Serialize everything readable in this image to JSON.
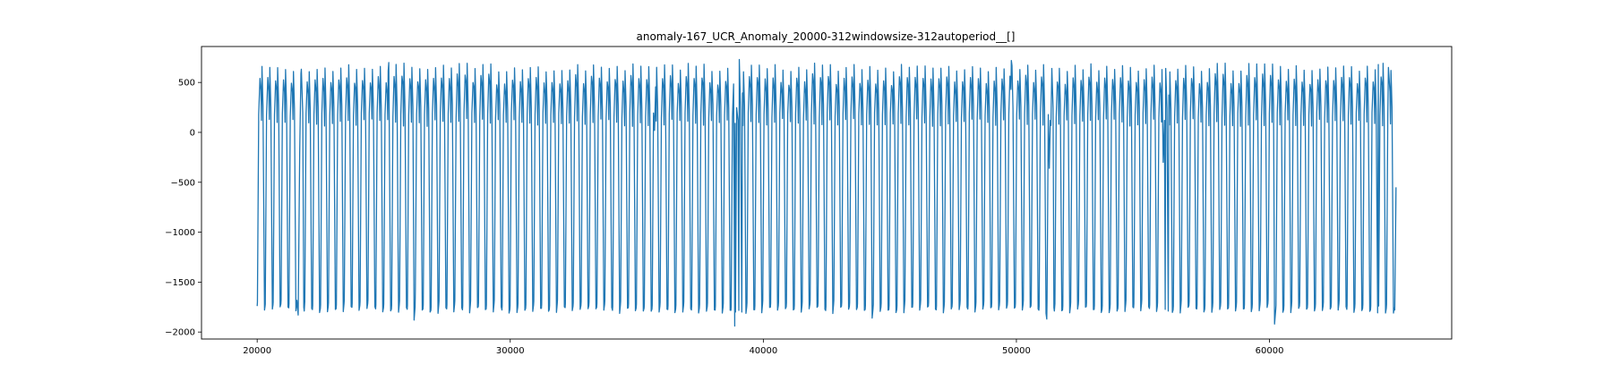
{
  "chart_data": {
    "type": "line",
    "title": "anomaly-167_UCR_Anomaly_20000-312windowsize-312autoperiod__[]",
    "xlabel": "",
    "ylabel": "",
    "xlim": [
      17800,
      67200
    ],
    "ylim": [
      -2070,
      860
    ],
    "xticks": [
      20000,
      30000,
      40000,
      50000,
      60000
    ],
    "yticks": [
      500,
      0,
      -500,
      -1000,
      -1500,
      -2000
    ],
    "xtick_labels": [
      "20000",
      "30000",
      "40000",
      "50000",
      "60000"
    ],
    "ytick_labels": [
      "500",
      "0",
      "−500",
      "−1000",
      "−1500",
      "−2000"
    ],
    "grid": false,
    "legend": "none",
    "series": [
      {
        "color": "#1f77b4",
        "x_start": 20000,
        "x_end": 65000,
        "period": 312,
        "typical_peak": 650,
        "typical_trough": -1780,
        "end_value": -550,
        "points": [
          [
            20000,
            -1740
          ],
          [
            20010,
            -1700
          ],
          [
            20060,
            180
          ],
          [
            20110,
            540
          ],
          [
            20150,
            420
          ],
          [
            20170,
            120
          ],
          [
            20190,
            660
          ],
          [
            20230,
            260
          ],
          [
            20290,
            -1780
          ],
          [
            20312,
            -1740
          ],
          [
            20320,
            -1720
          ],
          [
            20370,
            170
          ],
          [
            20420,
            550
          ],
          [
            20460,
            410
          ],
          [
            20480,
            130
          ],
          [
            20500,
            650
          ],
          [
            20540,
            250
          ],
          [
            20600,
            -1770
          ],
          [
            20624,
            -1730
          ],
          [
            20632,
            -1700
          ],
          [
            21600,
            -1860
          ],
          [
            21620,
            -1830
          ],
          [
            21680,
            -210
          ],
          [
            21700,
            120
          ],
          [
            21730,
            590
          ],
          [
            21800,
            200
          ],
          [
            21860,
            -1790
          ],
          [
            25200,
            700
          ],
          [
            26200,
            -1880
          ],
          [
            26250,
            -1570
          ],
          [
            35700,
            20
          ],
          [
            38870,
            -1940
          ],
          [
            38900,
            -1800
          ],
          [
            39000,
            120
          ],
          [
            39050,
            730
          ],
          [
            39100,
            230
          ],
          [
            39150,
            -1800
          ],
          [
            44300,
            -1860
          ],
          [
            49800,
            720
          ],
          [
            51200,
            -1870
          ],
          [
            51300,
            -360
          ],
          [
            51340,
            120
          ],
          [
            51400,
            640
          ],
          [
            51450,
            240
          ],
          [
            51500,
            -1790
          ],
          [
            55800,
            -300
          ],
          [
            55850,
            120
          ],
          [
            55900,
            640
          ],
          [
            55950,
            240
          ],
          [
            56000,
            -1790
          ],
          [
            60200,
            -1920
          ],
          [
            64300,
            680
          ],
          [
            64700,
            650
          ],
          [
            64900,
            -1810
          ],
          [
            64950,
            -1780
          ],
          [
            65000,
            -550
          ]
        ]
      }
    ]
  }
}
